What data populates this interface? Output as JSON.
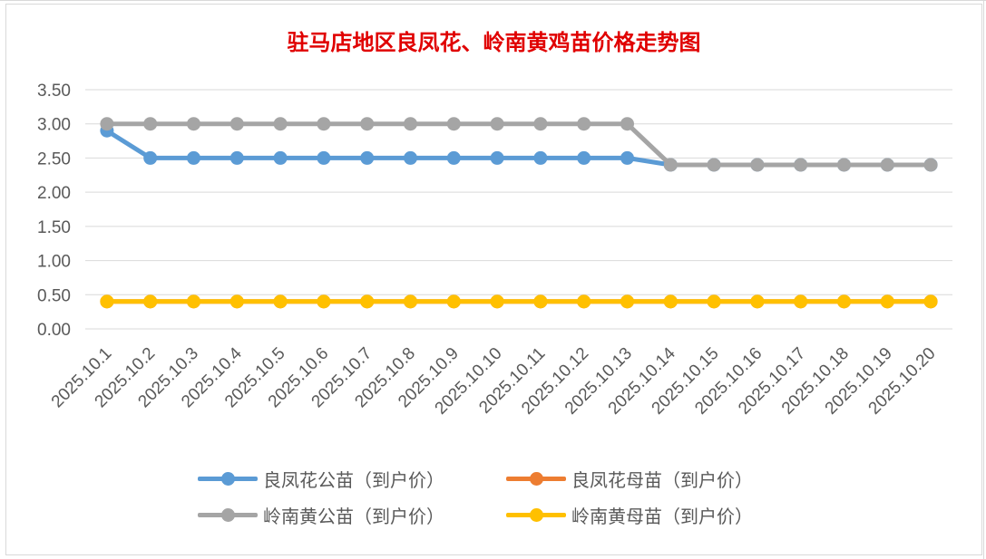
{
  "chart_data": {
    "type": "line",
    "title": "驻马店地区良凤花、岭南黄鸡苗价格走势图",
    "title_color": "#e00000",
    "xlabel": "",
    "ylabel": "",
    "ylim": [
      0,
      3.5
    ],
    "y_ticks": [
      "0.00",
      "0.50",
      "1.00",
      "1.50",
      "2.00",
      "2.50",
      "3.00",
      "3.50"
    ],
    "grid": true,
    "legend_position": "bottom",
    "categories": [
      "2025.10.1",
      "2025.10.2",
      "2025.10.3",
      "2025.10.4",
      "2025.10.5",
      "2025.10.6",
      "2025.10.7",
      "2025.10.8",
      "2025.10.9",
      "2025.10.10",
      "2025.10.11",
      "2025.10.12",
      "2025.10.13",
      "2025.10.14",
      "2025.10.15",
      "2025.10.16",
      "2025.10.17",
      "2025.10.18",
      "2025.10.19",
      "2025.10.20"
    ],
    "series": [
      {
        "name": "良凤花公苗（到户价）",
        "color": "#5b9bd5",
        "values": [
          2.9,
          2.5,
          2.5,
          2.5,
          2.5,
          2.5,
          2.5,
          2.5,
          2.5,
          2.5,
          2.5,
          2.5,
          2.5,
          2.4,
          2.4,
          2.4,
          2.4,
          2.4,
          2.4,
          2.4
        ]
      },
      {
        "name": "良凤花母苗（到户价）",
        "color": "#ed7d31",
        "values": [
          0.4,
          0.4,
          0.4,
          0.4,
          0.4,
          0.4,
          0.4,
          0.4,
          0.4,
          0.4,
          0.4,
          0.4,
          0.4,
          0.4,
          0.4,
          0.4,
          0.4,
          0.4,
          0.4,
          0.4
        ]
      },
      {
        "name": "岭南黄公苗（到户价）",
        "color": "#a5a5a5",
        "values": [
          3.0,
          3.0,
          3.0,
          3.0,
          3.0,
          3.0,
          3.0,
          3.0,
          3.0,
          3.0,
          3.0,
          3.0,
          3.0,
          2.4,
          2.4,
          2.4,
          2.4,
          2.4,
          2.4,
          2.4
        ]
      },
      {
        "name": "岭南黄母苗（到户价）",
        "color": "#ffc000",
        "values": [
          0.4,
          0.4,
          0.4,
          0.4,
          0.4,
          0.4,
          0.4,
          0.4,
          0.4,
          0.4,
          0.4,
          0.4,
          0.4,
          0.4,
          0.4,
          0.4,
          0.4,
          0.4,
          0.4,
          0.4
        ]
      }
    ]
  }
}
